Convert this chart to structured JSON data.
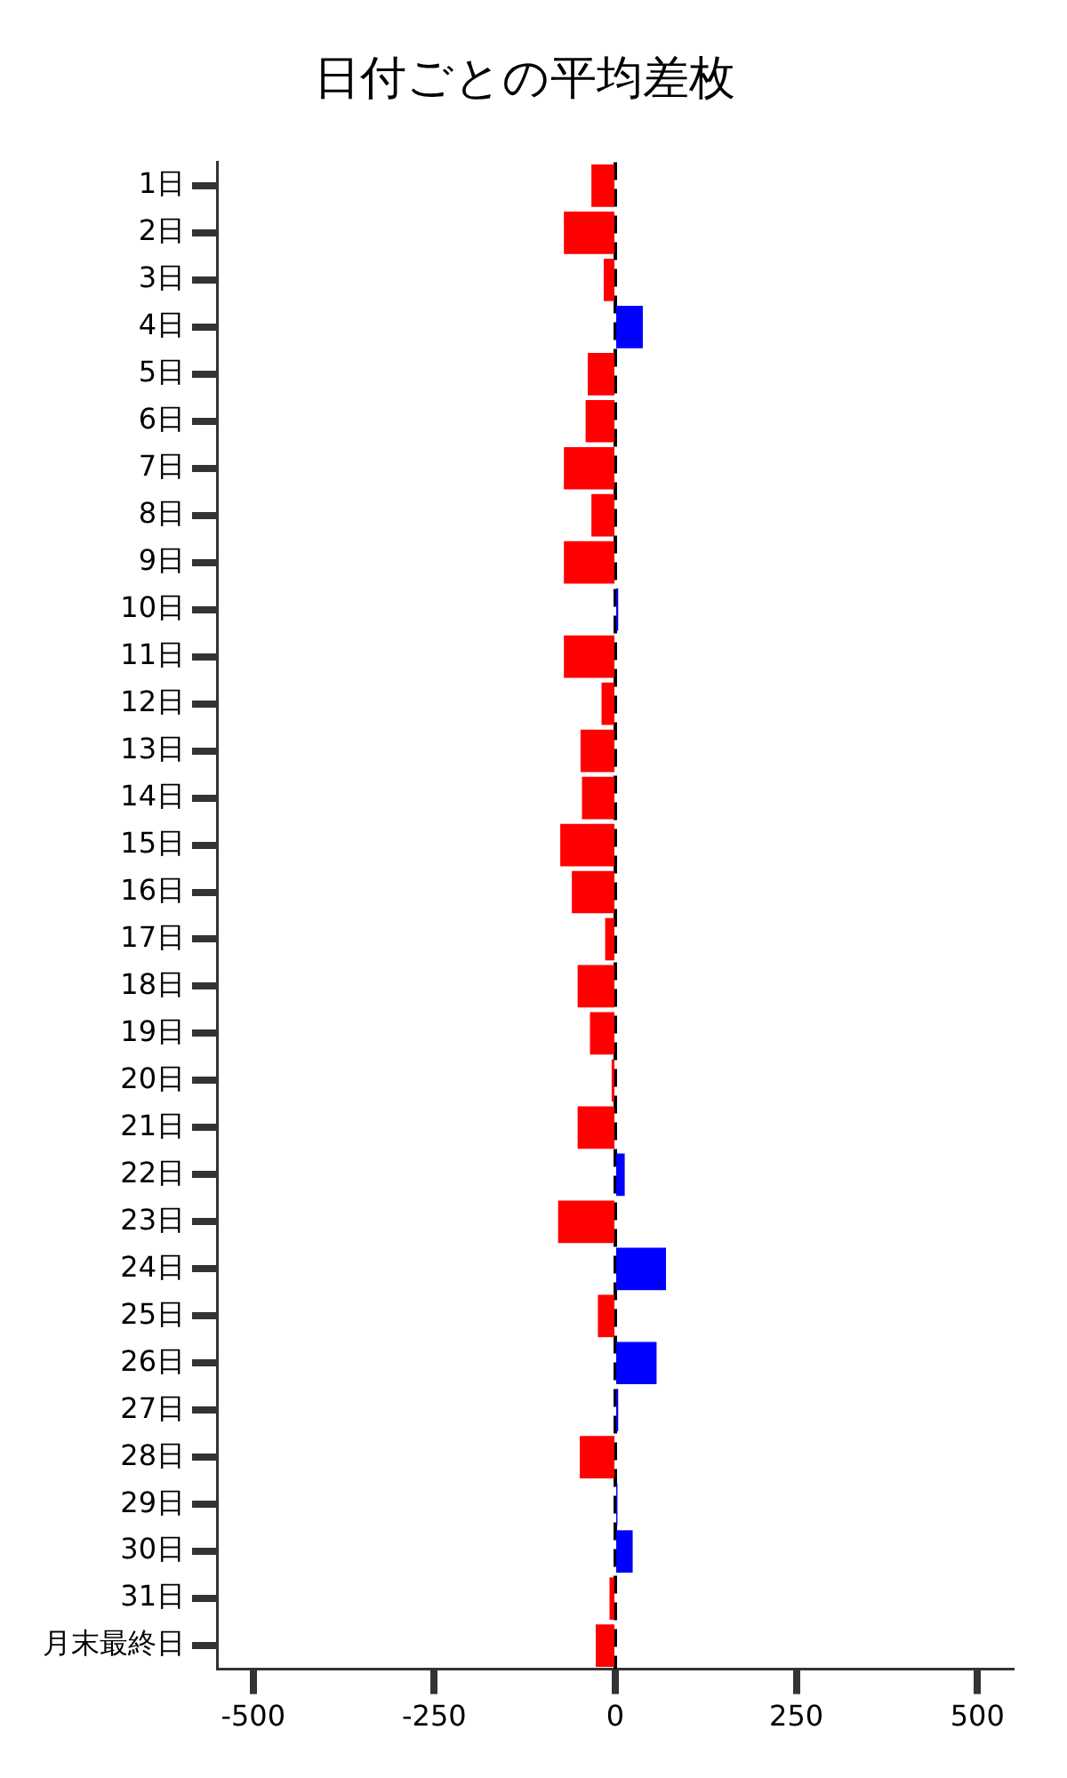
{
  "chart_data": {
    "type": "bar",
    "orientation": "horizontal",
    "title": "日付ごとの平均差枚",
    "categories": [
      "1日",
      "2日",
      "3日",
      "4日",
      "5日",
      "6日",
      "7日",
      "8日",
      "9日",
      "10日",
      "11日",
      "12日",
      "13日",
      "14日",
      "15日",
      "16日",
      "17日",
      "18日",
      "19日",
      "20日",
      "21日",
      "22日",
      "23日",
      "24日",
      "25日",
      "26日",
      "27日",
      "28日",
      "29日",
      "30日",
      "31日",
      "月末最終日"
    ],
    "values": [
      -33,
      -71,
      -16,
      38,
      -38,
      -41,
      -71,
      -33,
      -71,
      4,
      -71,
      -19,
      -48,
      -46,
      -76,
      -60,
      -14,
      -52,
      -35,
      -5,
      -52,
      13,
      -79,
      70,
      -24,
      57,
      4,
      -49,
      3,
      24,
      -8,
      -27
    ],
    "colors": [
      "#ff0000",
      "#ff0000",
      "#ff0000",
      "#0000ff",
      "#ff0000",
      "#ff0000",
      "#ff0000",
      "#ff0000",
      "#ff0000",
      "#0000ff",
      "#ff0000",
      "#ff0000",
      "#ff0000",
      "#ff0000",
      "#ff0000",
      "#ff0000",
      "#ff0000",
      "#ff0000",
      "#ff0000",
      "#ff0000",
      "#ff0000",
      "#0000ff",
      "#ff0000",
      "#0000ff",
      "#ff0000",
      "#0000ff",
      "#0000ff",
      "#ff0000",
      "#0000ff",
      "#0000ff",
      "#ff0000",
      "#ff0000"
    ],
    "xlim": [
      -550,
      550
    ],
    "xticks": [
      -500,
      -250,
      0,
      250,
      500
    ],
    "ref_lines": [
      {
        "axis": "x",
        "value": 0,
        "color": "#000000",
        "line_style": "dashed"
      }
    ],
    "grid": false,
    "legend": false
  }
}
